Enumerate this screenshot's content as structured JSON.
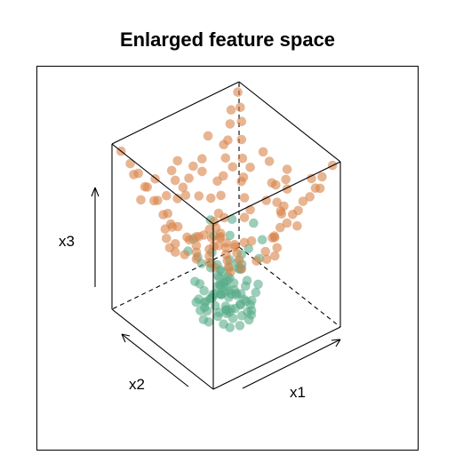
{
  "chart_data": {
    "type": "scatter",
    "projection": "3d",
    "title": "Enlarged feature space",
    "axes": {
      "x_label": "x1",
      "y_label": "x2",
      "z_label": "x3"
    },
    "colors": {
      "class_inner": "#5aae8a",
      "class_outer": "#d9834a",
      "frame": "#000000"
    },
    "series": [
      {
        "class": "inner",
        "color_key": "class_inner",
        "points": [
          [
            0.43,
            0.48,
            0.28
          ],
          [
            0.45,
            0.5,
            0.22
          ],
          [
            0.48,
            0.47,
            0.25
          ],
          [
            0.5,
            0.52,
            0.2
          ],
          [
            0.52,
            0.49,
            0.24
          ],
          [
            0.47,
            0.55,
            0.18
          ],
          [
            0.53,
            0.54,
            0.16
          ],
          [
            0.56,
            0.5,
            0.19
          ],
          [
            0.44,
            0.44,
            0.21
          ],
          [
            0.5,
            0.45,
            0.17
          ],
          [
            0.55,
            0.46,
            0.14
          ],
          [
            0.58,
            0.52,
            0.13
          ],
          [
            0.41,
            0.52,
            0.15
          ],
          [
            0.46,
            0.58,
            0.12
          ],
          [
            0.52,
            0.58,
            0.1
          ],
          [
            0.57,
            0.56,
            0.11
          ],
          [
            0.6,
            0.48,
            0.12
          ],
          [
            0.39,
            0.47,
            0.13
          ],
          [
            0.43,
            0.41,
            0.12
          ],
          [
            0.49,
            0.4,
            0.11
          ],
          [
            0.55,
            0.42,
            0.1
          ],
          [
            0.61,
            0.44,
            0.09
          ],
          [
            0.62,
            0.55,
            0.08
          ],
          [
            0.37,
            0.55,
            0.09
          ],
          [
            0.42,
            0.6,
            0.08
          ],
          [
            0.48,
            0.62,
            0.07
          ],
          [
            0.55,
            0.61,
            0.07
          ],
          [
            0.35,
            0.5,
            0.1
          ],
          [
            0.38,
            0.43,
            0.09
          ],
          [
            0.45,
            0.37,
            0.08
          ],
          [
            0.52,
            0.37,
            0.07
          ],
          [
            0.58,
            0.39,
            0.06
          ],
          [
            0.64,
            0.5,
            0.06
          ],
          [
            0.5,
            0.5,
            0.05
          ],
          [
            0.46,
            0.52,
            0.04
          ],
          [
            0.54,
            0.5,
            0.04
          ],
          [
            0.48,
            0.47,
            0.05
          ],
          [
            0.52,
            0.53,
            0.05
          ],
          [
            0.4,
            0.4,
            0.05
          ],
          [
            0.6,
            0.6,
            0.04
          ],
          [
            0.44,
            0.64,
            0.05
          ],
          [
            0.36,
            0.58,
            0.06
          ],
          [
            0.33,
            0.46,
            0.06
          ],
          [
            0.62,
            0.4,
            0.05
          ],
          [
            0.66,
            0.46,
            0.04
          ],
          [
            0.57,
            0.64,
            0.05
          ],
          [
            0.5,
            0.66,
            0.04
          ],
          [
            0.41,
            0.35,
            0.05
          ],
          [
            0.48,
            0.34,
            0.04
          ],
          [
            0.56,
            0.35,
            0.04
          ],
          [
            0.34,
            0.41,
            0.25
          ],
          [
            0.37,
            0.39,
            0.3
          ],
          [
            0.62,
            0.62,
            0.2
          ],
          [
            0.65,
            0.58,
            0.24
          ],
          [
            0.3,
            0.52,
            0.18
          ],
          [
            0.68,
            0.52,
            0.15
          ],
          [
            0.42,
            0.66,
            0.16
          ],
          [
            0.58,
            0.68,
            0.14
          ],
          [
            0.45,
            0.3,
            0.2
          ],
          [
            0.55,
            0.31,
            0.18
          ],
          [
            0.35,
            0.62,
            0.22
          ],
          [
            0.64,
            0.36,
            0.22
          ],
          [
            0.39,
            0.33,
            0.16
          ],
          [
            0.61,
            0.66,
            0.1
          ],
          [
            0.32,
            0.57,
            0.13
          ],
          [
            0.67,
            0.42,
            0.13
          ],
          [
            0.47,
            0.68,
            0.09
          ],
          [
            0.53,
            0.29,
            0.11
          ],
          [
            0.29,
            0.46,
            0.09
          ],
          [
            0.7,
            0.56,
            0.09
          ],
          [
            0.43,
            0.56,
            0.33
          ],
          [
            0.57,
            0.44,
            0.3
          ],
          [
            0.51,
            0.6,
            0.27
          ],
          [
            0.45,
            0.42,
            0.31
          ],
          [
            0.59,
            0.58,
            0.28
          ],
          [
            0.38,
            0.5,
            0.35
          ],
          [
            0.62,
            0.5,
            0.34
          ],
          [
            0.5,
            0.38,
            0.36
          ],
          [
            0.5,
            0.64,
            0.33
          ],
          [
            0.33,
            0.53,
            0.38
          ],
          [
            0.66,
            0.48,
            0.37
          ],
          [
            0.47,
            0.33,
            0.39
          ],
          [
            0.54,
            0.67,
            0.4
          ],
          [
            0.36,
            0.36,
            0.4
          ],
          [
            0.64,
            0.64,
            0.38
          ],
          [
            0.4,
            0.7,
            0.42
          ],
          [
            0.6,
            0.3,
            0.42
          ],
          [
            0.28,
            0.6,
            0.44
          ],
          [
            0.72,
            0.42,
            0.43
          ],
          [
            0.31,
            0.32,
            0.45
          ],
          [
            0.69,
            0.68,
            0.44
          ],
          [
            0.44,
            0.27,
            0.46
          ],
          [
            0.56,
            0.73,
            0.46
          ],
          [
            0.26,
            0.48,
            0.47
          ],
          [
            0.74,
            0.53,
            0.47
          ]
        ]
      },
      {
        "class": "outer",
        "color_key": "class_outer",
        "points": [
          [
            0.03,
            0.03,
            0.99
          ],
          [
            0.06,
            0.05,
            0.93
          ],
          [
            0.09,
            0.04,
            0.89
          ],
          [
            0.05,
            0.1,
            0.9
          ],
          [
            0.12,
            0.08,
            0.84
          ],
          [
            0.1,
            0.14,
            0.81
          ],
          [
            0.15,
            0.06,
            0.8
          ],
          [
            0.07,
            0.18,
            0.82
          ],
          [
            0.18,
            0.1,
            0.74
          ],
          [
            0.14,
            0.17,
            0.73
          ],
          [
            0.2,
            0.04,
            0.78
          ],
          [
            0.04,
            0.22,
            0.8
          ],
          [
            0.22,
            0.15,
            0.66
          ],
          [
            0.16,
            0.24,
            0.67
          ],
          [
            0.25,
            0.08,
            0.69
          ],
          [
            0.09,
            0.28,
            0.7
          ],
          [
            0.27,
            0.2,
            0.58
          ],
          [
            0.2,
            0.29,
            0.59
          ],
          [
            0.3,
            0.12,
            0.61
          ],
          [
            0.13,
            0.33,
            0.62
          ],
          [
            0.32,
            0.25,
            0.5
          ],
          [
            0.24,
            0.34,
            0.51
          ],
          [
            0.35,
            0.16,
            0.52
          ],
          [
            0.17,
            0.38,
            0.54
          ],
          [
            0.3,
            0.36,
            0.45
          ],
          [
            0.36,
            0.28,
            0.44
          ],
          [
            0.95,
            0.95,
            0.98
          ],
          [
            0.93,
            0.9,
            0.92
          ],
          [
            0.89,
            0.94,
            0.9
          ],
          [
            0.9,
            0.85,
            0.87
          ],
          [
            0.85,
            0.9,
            0.85
          ],
          [
            0.86,
            0.8,
            0.8
          ],
          [
            0.8,
            0.86,
            0.79
          ],
          [
            0.82,
            0.74,
            0.73
          ],
          [
            0.75,
            0.82,
            0.72
          ],
          [
            0.78,
            0.68,
            0.66
          ],
          [
            0.7,
            0.78,
            0.65
          ],
          [
            0.74,
            0.62,
            0.58
          ],
          [
            0.65,
            0.74,
            0.57
          ],
          [
            0.7,
            0.57,
            0.5
          ],
          [
            0.6,
            0.7,
            0.5
          ],
          [
            0.97,
            0.04,
            0.97
          ],
          [
            0.92,
            0.08,
            0.9
          ],
          [
            0.88,
            0.05,
            0.86
          ],
          [
            0.9,
            0.12,
            0.82
          ],
          [
            0.84,
            0.1,
            0.8
          ],
          [
            0.85,
            0.18,
            0.73
          ],
          [
            0.78,
            0.14,
            0.72
          ],
          [
            0.8,
            0.22,
            0.65
          ],
          [
            0.74,
            0.2,
            0.63
          ],
          [
            0.75,
            0.28,
            0.56
          ],
          [
            0.68,
            0.25,
            0.55
          ],
          [
            0.72,
            0.32,
            0.49
          ],
          [
            0.04,
            0.96,
            0.96
          ],
          [
            0.08,
            0.92,
            0.89
          ],
          [
            0.12,
            0.89,
            0.83
          ],
          [
            0.06,
            0.86,
            0.86
          ],
          [
            0.15,
            0.84,
            0.76
          ],
          [
            0.1,
            0.8,
            0.8
          ],
          [
            0.2,
            0.8,
            0.68
          ],
          [
            0.14,
            0.76,
            0.72
          ],
          [
            0.24,
            0.75,
            0.61
          ],
          [
            0.18,
            0.72,
            0.64
          ],
          [
            0.28,
            0.7,
            0.54
          ],
          [
            0.22,
            0.68,
            0.57
          ],
          [
            0.32,
            0.66,
            0.48
          ],
          [
            0.5,
            0.02,
            0.72
          ],
          [
            0.45,
            0.05,
            0.64
          ],
          [
            0.55,
            0.06,
            0.62
          ],
          [
            0.5,
            0.1,
            0.55
          ],
          [
            0.42,
            0.1,
            0.57
          ],
          [
            0.58,
            0.12,
            0.53
          ],
          [
            0.5,
            0.98,
            0.72
          ],
          [
            0.45,
            0.94,
            0.64
          ],
          [
            0.55,
            0.93,
            0.62
          ],
          [
            0.5,
            0.9,
            0.55
          ],
          [
            0.42,
            0.88,
            0.57
          ],
          [
            0.58,
            0.87,
            0.53
          ],
          [
            0.02,
            0.5,
            0.72
          ],
          [
            0.06,
            0.45,
            0.64
          ],
          [
            0.07,
            0.55,
            0.62
          ],
          [
            0.1,
            0.5,
            0.55
          ],
          [
            0.11,
            0.42,
            0.57
          ],
          [
            0.12,
            0.58,
            0.53
          ],
          [
            0.98,
            0.5,
            0.72
          ],
          [
            0.94,
            0.45,
            0.64
          ],
          [
            0.93,
            0.55,
            0.62
          ],
          [
            0.9,
            0.5,
            0.55
          ],
          [
            0.89,
            0.42,
            0.57
          ],
          [
            0.88,
            0.58,
            0.53
          ],
          [
            0.26,
            0.02,
            0.78
          ],
          [
            0.74,
            0.98,
            0.78
          ],
          [
            0.02,
            0.74,
            0.78
          ],
          [
            0.98,
            0.26,
            0.78
          ],
          [
            0.3,
            0.95,
            0.7
          ],
          [
            0.7,
            0.05,
            0.7
          ],
          [
            0.05,
            0.3,
            0.74
          ],
          [
            0.95,
            0.7,
            0.74
          ],
          [
            0.35,
            0.55,
            0.92
          ],
          [
            0.65,
            0.45,
            0.88
          ],
          [
            0.5,
            0.35,
            0.9
          ],
          [
            0.4,
            0.7,
            0.86
          ],
          [
            0.6,
            0.65,
            0.94
          ],
          [
            0.3,
            0.4,
            0.85
          ],
          [
            0.7,
            0.3,
            0.84
          ],
          [
            0.55,
            0.8,
            0.8
          ],
          [
            0.45,
            0.2,
            0.82
          ],
          [
            0.2,
            0.55,
            0.88
          ],
          [
            0.8,
            0.45,
            0.86
          ],
          [
            0.25,
            0.25,
            0.7
          ],
          [
            0.75,
            0.75,
            0.7
          ],
          [
            0.35,
            0.85,
            0.78
          ],
          [
            0.65,
            0.15,
            0.76
          ],
          [
            0.15,
            0.65,
            0.8
          ],
          [
            0.85,
            0.35,
            0.78
          ],
          [
            0.4,
            0.45,
            0.5
          ],
          [
            0.62,
            0.4,
            0.47
          ],
          [
            0.38,
            0.62,
            0.48
          ],
          [
            0.58,
            0.62,
            0.52
          ],
          [
            0.33,
            0.2,
            0.64
          ],
          [
            0.67,
            0.8,
            0.62
          ],
          [
            0.8,
            0.33,
            0.6
          ],
          [
            0.2,
            0.67,
            0.6
          ]
        ]
      }
    ]
  }
}
